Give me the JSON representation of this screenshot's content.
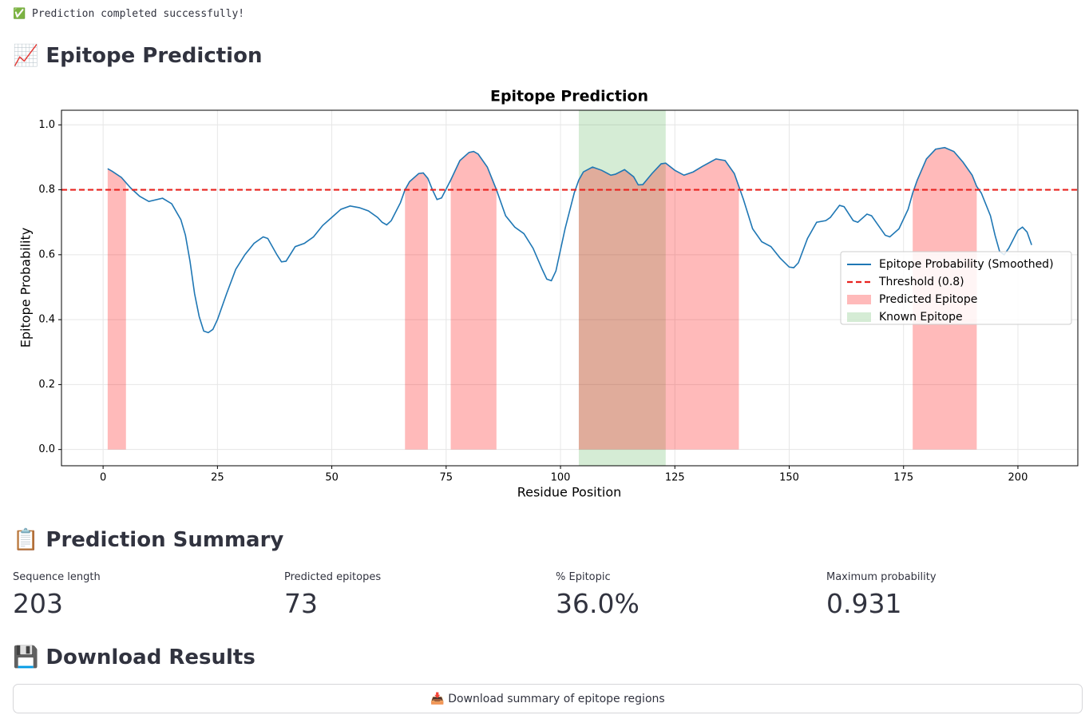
{
  "status": "✅ Prediction completed successfully!",
  "sections": {
    "plot": "📈 Epitope Prediction",
    "summary": "📋 Prediction Summary",
    "download": "💾 Download Results"
  },
  "metrics": [
    {
      "label": "Sequence length",
      "value": "203"
    },
    {
      "label": "Predicted epitopes",
      "value": "73"
    },
    {
      "label": "% Epitopic",
      "value": "36.0%"
    },
    {
      "label": "Maximum probability",
      "value": "0.931"
    }
  ],
  "download_button": "📥 Download summary of epitope regions",
  "chart_data": {
    "type": "line",
    "title": "Epitope Prediction",
    "x_label": "Residue Position",
    "y_label": "Epitope Probability",
    "x": [
      1,
      2,
      4,
      5,
      6,
      8,
      10,
      13,
      15,
      17,
      18,
      19,
      20,
      21,
      22,
      23,
      24,
      25,
      27,
      29,
      31,
      33,
      35,
      36,
      38,
      39,
      40,
      42,
      44,
      46,
      48,
      50,
      52,
      54,
      56,
      58,
      60,
      61,
      62,
      63,
      65,
      66,
      67,
      69,
      70,
      71,
      72,
      73,
      74,
      76,
      78,
      80,
      81,
      82,
      84,
      86,
      88,
      90,
      92,
      94,
      96,
      97,
      98,
      99,
      101,
      103,
      104,
      105,
      107,
      109,
      111,
      112,
      114,
      116,
      117,
      118,
      120,
      122,
      123,
      125,
      127,
      129,
      131,
      134,
      136,
      138,
      139,
      140,
      142,
      144,
      146,
      148,
      150,
      151,
      152,
      154,
      156,
      158,
      159,
      161,
      162,
      164,
      165,
      167,
      168,
      170,
      171,
      172,
      174,
      176,
      177,
      178,
      180,
      182,
      184,
      186,
      188,
      190,
      191,
      192,
      194,
      195,
      196,
      197,
      198,
      200,
      201,
      202,
      203
    ],
    "series": [
      {
        "name": "Epitope Probability (Smoothed)",
        "color": "#1f77b4",
        "values": [
          0.865,
          0.857,
          0.838,
          0.822,
          0.806,
          0.78,
          0.764,
          0.774,
          0.757,
          0.708,
          0.66,
          0.58,
          0.48,
          0.41,
          0.365,
          0.36,
          0.37,
          0.4,
          0.48,
          0.555,
          0.6,
          0.635,
          0.655,
          0.65,
          0.6,
          0.578,
          0.58,
          0.625,
          0.635,
          0.655,
          0.69,
          0.715,
          0.74,
          0.75,
          0.745,
          0.735,
          0.715,
          0.7,
          0.692,
          0.705,
          0.76,
          0.8,
          0.825,
          0.85,
          0.852,
          0.835,
          0.8,
          0.77,
          0.775,
          0.83,
          0.89,
          0.915,
          0.918,
          0.91,
          0.87,
          0.8,
          0.72,
          0.685,
          0.665,
          0.62,
          0.555,
          0.525,
          0.52,
          0.55,
          0.68,
          0.79,
          0.83,
          0.855,
          0.87,
          0.86,
          0.845,
          0.848,
          0.862,
          0.84,
          0.815,
          0.816,
          0.85,
          0.88,
          0.882,
          0.86,
          0.845,
          0.855,
          0.872,
          0.895,
          0.89,
          0.85,
          0.81,
          0.77,
          0.68,
          0.64,
          0.625,
          0.59,
          0.562,
          0.56,
          0.575,
          0.65,
          0.7,
          0.705,
          0.715,
          0.752,
          0.748,
          0.705,
          0.7,
          0.725,
          0.72,
          0.68,
          0.66,
          0.655,
          0.68,
          0.74,
          0.79,
          0.83,
          0.895,
          0.925,
          0.93,
          0.918,
          0.885,
          0.845,
          0.81,
          0.79,
          0.72,
          0.66,
          0.61,
          0.6,
          0.62,
          0.675,
          0.685,
          0.67,
          0.63
        ]
      }
    ],
    "threshold": {
      "name": "Threshold (0.8)",
      "value": 0.8,
      "color": "#e8231f"
    },
    "predicted": {
      "name": "Predicted Epitope",
      "color": "#ff0000",
      "opacity": 0.27,
      "regions": [
        [
          1,
          5
        ],
        [
          66,
          71
        ],
        [
          76,
          86
        ],
        [
          104,
          139
        ],
        [
          177,
          191
        ]
      ]
    },
    "known": {
      "name": "Known Epitope",
      "color": "#2ca02c",
      "opacity": 0.2,
      "regions": [
        [
          104,
          123
        ]
      ]
    },
    "xlim": [
      -9.1,
      213.1
    ],
    "ylim": [
      -0.05,
      1.045
    ],
    "xticks": [
      0,
      25,
      50,
      75,
      100,
      125,
      150,
      175,
      200
    ],
    "yticks": [
      {
        "value": 0,
        "label": "0.0"
      },
      0.2,
      0.4,
      0.6,
      0.8,
      {
        "value": 1,
        "label": "1.0"
      }
    ],
    "grid": true,
    "legend": "right"
  }
}
